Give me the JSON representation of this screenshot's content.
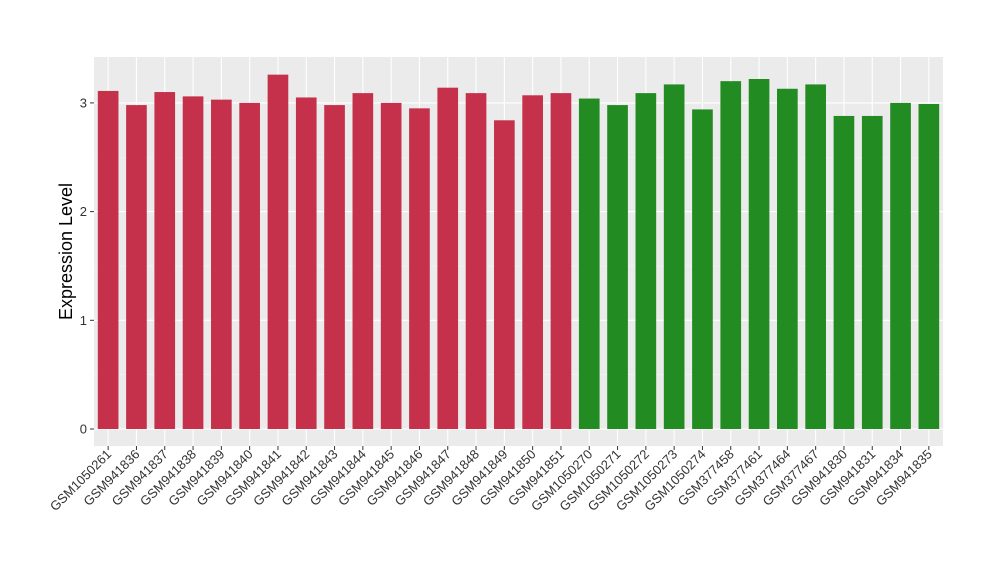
{
  "chart_data": {
    "type": "bar",
    "title": "",
    "xlabel": "",
    "ylabel": "Expression Level",
    "ylim": [
      0,
      3.4
    ],
    "yticks": [
      0,
      1,
      2,
      3
    ],
    "grid": true,
    "background": "#EBEBEB",
    "categories": [
      "GSM1050261",
      "GSM941836",
      "GSM941837",
      "GSM941838",
      "GSM941839",
      "GSM941840",
      "GSM941841",
      "GSM941842",
      "GSM941843",
      "GSM941844",
      "GSM941845",
      "GSM941846",
      "GSM941847",
      "GSM941848",
      "GSM941849",
      "GSM941850",
      "GSM941851",
      "GSM1050270",
      "GSM1050271",
      "GSM1050272",
      "GSM1050273",
      "GSM1050274",
      "GSM377458",
      "GSM377461",
      "GSM377464",
      "GSM377467",
      "GSM941830",
      "GSM941831",
      "GSM941834",
      "GSM941835"
    ],
    "values": [
      3.11,
      2.98,
      3.1,
      3.06,
      3.03,
      3.0,
      3.26,
      3.05,
      2.98,
      3.09,
      3.0,
      2.95,
      3.14,
      3.09,
      2.84,
      3.07,
      3.09,
      3.04,
      2.98,
      3.09,
      3.17,
      2.94,
      3.2,
      3.22,
      3.13,
      3.17,
      2.88,
      2.88,
      3.0,
      2.99
    ],
    "colors": [
      "#C5314A",
      "#C5314A",
      "#C5314A",
      "#C5314A",
      "#C5314A",
      "#C5314A",
      "#C5314A",
      "#C5314A",
      "#C5314A",
      "#C5314A",
      "#C5314A",
      "#C5314A",
      "#C5314A",
      "#C5314A",
      "#C5314A",
      "#C5314A",
      "#C5314A",
      "#228B22",
      "#228B22",
      "#228B22",
      "#228B22",
      "#228B22",
      "#228B22",
      "#228B22",
      "#228B22",
      "#228B22",
      "#228B22",
      "#228B22",
      "#228B22",
      "#228B22"
    ]
  }
}
